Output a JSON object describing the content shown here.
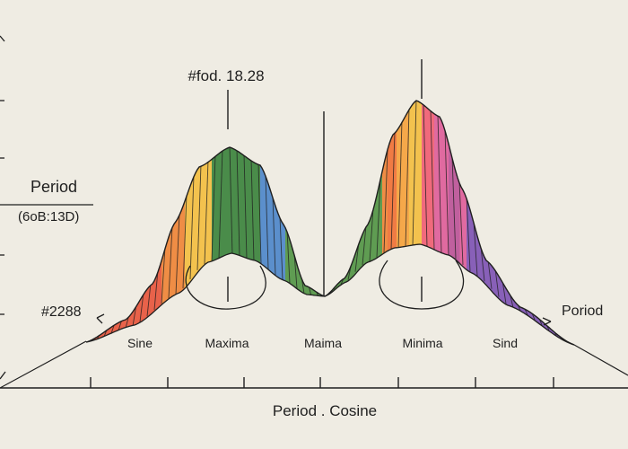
{
  "annotations": {
    "top_label": "#fod. 18.28",
    "period_label": "Period",
    "period_sub": "(6oB:13D)",
    "left_label": "#2288",
    "right_label": "Poriod"
  },
  "x_labels": [
    "Sine",
    "Maxima",
    "Maima",
    "Minima",
    "Sind"
  ],
  "x_axis_title": "Period . Cosine",
  "colors": {
    "background": "#efece3",
    "ink": "#1f1f1f",
    "palette": [
      "#e8624a",
      "#ef8d45",
      "#f3c24e",
      "#5f9c52",
      "#4a8c4a",
      "#5b8fcc",
      "#8860b8",
      "#e06aa0"
    ]
  }
}
